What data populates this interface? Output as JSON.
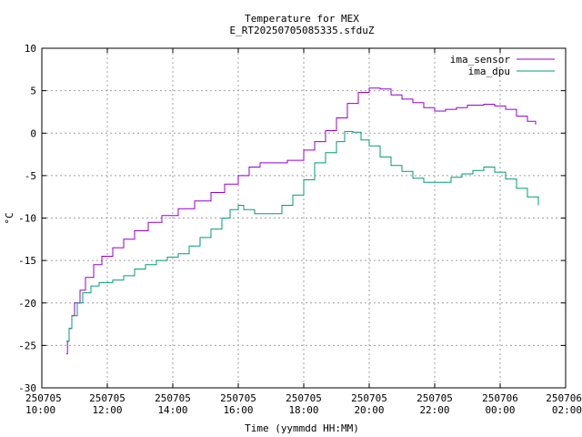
{
  "chart_data": {
    "type": "line",
    "title": "Temperature for MEX",
    "subtitle": "E_RT20250705085335.sfduZ",
    "xlabel": "Time (yymmdd HH:MM)",
    "ylabel": "°C",
    "xlim": [
      "2025-07-05T10:00",
      "2025-07-06T02:00"
    ],
    "ylim": [
      -30,
      10
    ],
    "grid": true,
    "legend_position": "top-right",
    "x_ticks": [
      {
        "date": "250705",
        "time": "10:00",
        "t": "2025-07-05T10:00"
      },
      {
        "date": "250705",
        "time": "12:00",
        "t": "2025-07-05T12:00"
      },
      {
        "date": "250705",
        "time": "14:00",
        "t": "2025-07-05T14:00"
      },
      {
        "date": "250705",
        "time": "16:00",
        "t": "2025-07-05T16:00"
      },
      {
        "date": "250705",
        "time": "18:00",
        "t": "2025-07-05T18:00"
      },
      {
        "date": "250705",
        "time": "20:00",
        "t": "2025-07-05T20:00"
      },
      {
        "date": "250705",
        "time": "22:00",
        "t": "2025-07-05T22:00"
      },
      {
        "date": "250706",
        "time": "00:00",
        "t": "2025-07-06T00:00"
      },
      {
        "date": "250706",
        "time": "02:00",
        "t": "2025-07-06T02:00"
      }
    ],
    "y_ticks": [
      -30,
      -25,
      -20,
      -15,
      -10,
      -5,
      0,
      5,
      10
    ],
    "series": [
      {
        "name": "ima_sensor",
        "color": "#9400d3",
        "points": [
          [
            "2025-07-05T10:45",
            -26.0
          ],
          [
            "2025-07-05T10:47",
            -24.5
          ],
          [
            "2025-07-05T10:50",
            -23.0
          ],
          [
            "2025-07-05T10:55",
            -21.5
          ],
          [
            "2025-07-05T11:00",
            -20.0
          ],
          [
            "2025-07-05T11:10",
            -18.5
          ],
          [
            "2025-07-05T11:20",
            -17.0
          ],
          [
            "2025-07-05T11:35",
            -15.5
          ],
          [
            "2025-07-05T11:50",
            -14.5
          ],
          [
            "2025-07-05T12:10",
            -13.5
          ],
          [
            "2025-07-05T12:30",
            -12.5
          ],
          [
            "2025-07-05T12:50",
            -11.5
          ],
          [
            "2025-07-05T13:15",
            -10.5
          ],
          [
            "2025-07-05T13:40",
            -9.7
          ],
          [
            "2025-07-05T14:10",
            -8.9
          ],
          [
            "2025-07-05T14:40",
            -8.0
          ],
          [
            "2025-07-05T15:10",
            -7.0
          ],
          [
            "2025-07-05T15:35",
            -6.0
          ],
          [
            "2025-07-05T16:00",
            -5.0
          ],
          [
            "2025-07-05T16:20",
            -4.0
          ],
          [
            "2025-07-05T16:40",
            -3.5
          ],
          [
            "2025-07-05T17:00",
            -3.5
          ],
          [
            "2025-07-05T17:30",
            -3.2
          ],
          [
            "2025-07-05T18:00",
            -2.0
          ],
          [
            "2025-07-05T18:20",
            -1.0
          ],
          [
            "2025-07-05T18:40",
            0.3
          ],
          [
            "2025-07-05T19:00",
            1.8
          ],
          [
            "2025-07-05T19:20",
            3.5
          ],
          [
            "2025-07-05T19:40",
            4.8
          ],
          [
            "2025-07-05T20:00",
            5.3
          ],
          [
            "2025-07-05T20:20",
            5.2
          ],
          [
            "2025-07-05T20:40",
            4.5
          ],
          [
            "2025-07-05T21:00",
            4.0
          ],
          [
            "2025-07-05T21:20",
            3.6
          ],
          [
            "2025-07-05T21:40",
            3.0
          ],
          [
            "2025-07-05T22:00",
            2.6
          ],
          [
            "2025-07-05T22:20",
            2.8
          ],
          [
            "2025-07-05T22:40",
            3.0
          ],
          [
            "2025-07-05T23:00",
            3.3
          ],
          [
            "2025-07-05T23:30",
            3.4
          ],
          [
            "2025-07-05T23:50",
            3.2
          ],
          [
            "2025-07-06T00:10",
            2.8
          ],
          [
            "2025-07-06T00:30",
            2.0
          ],
          [
            "2025-07-06T00:50",
            1.4
          ],
          [
            "2025-07-06T01:05",
            1.0
          ]
        ]
      },
      {
        "name": "ima_dpu",
        "color": "#009e73",
        "points": [
          [
            "2025-07-05T10:45",
            -24.5
          ],
          [
            "2025-07-05T10:50",
            -23.0
          ],
          [
            "2025-07-05T10:55",
            -21.5
          ],
          [
            "2025-07-05T11:05",
            -20.0
          ],
          [
            "2025-07-05T11:15",
            -18.8
          ],
          [
            "2025-07-05T11:30",
            -18.0
          ],
          [
            "2025-07-05T11:45",
            -17.6
          ],
          [
            "2025-07-05T12:10",
            -17.3
          ],
          [
            "2025-07-05T12:30",
            -16.8
          ],
          [
            "2025-07-05T12:50",
            -16.0
          ],
          [
            "2025-07-05T13:10",
            -15.5
          ],
          [
            "2025-07-05T13:30",
            -15.0
          ],
          [
            "2025-07-05T13:50",
            -14.6
          ],
          [
            "2025-07-05T14:10",
            -14.2
          ],
          [
            "2025-07-05T14:30",
            -13.3
          ],
          [
            "2025-07-05T14:50",
            -12.3
          ],
          [
            "2025-07-05T15:10",
            -11.3
          ],
          [
            "2025-07-05T15:30",
            -10.0
          ],
          [
            "2025-07-05T15:45",
            -9.0
          ],
          [
            "2025-07-05T16:00",
            -8.5
          ],
          [
            "2025-07-05T16:10",
            -9.0
          ],
          [
            "2025-07-05T16:30",
            -9.5
          ],
          [
            "2025-07-05T17:00",
            -9.5
          ],
          [
            "2025-07-05T17:20",
            -8.5
          ],
          [
            "2025-07-05T17:40",
            -7.3
          ],
          [
            "2025-07-05T18:00",
            -5.5
          ],
          [
            "2025-07-05T18:20",
            -3.5
          ],
          [
            "2025-07-05T18:40",
            -2.3
          ],
          [
            "2025-07-05T19:00",
            -1.0
          ],
          [
            "2025-07-05T19:15",
            0.2
          ],
          [
            "2025-07-05T19:30",
            0.1
          ],
          [
            "2025-07-05T19:45",
            -0.8
          ],
          [
            "2025-07-05T20:00",
            -1.5
          ],
          [
            "2025-07-05T20:20",
            -2.8
          ],
          [
            "2025-07-05T20:40",
            -3.8
          ],
          [
            "2025-07-05T21:00",
            -4.5
          ],
          [
            "2025-07-05T21:20",
            -5.3
          ],
          [
            "2025-07-05T21:40",
            -5.8
          ],
          [
            "2025-07-05T22:10",
            -5.8
          ],
          [
            "2025-07-05T22:30",
            -5.2
          ],
          [
            "2025-07-05T22:50",
            -4.8
          ],
          [
            "2025-07-05T23:10",
            -4.4
          ],
          [
            "2025-07-05T23:30",
            -4.0
          ],
          [
            "2025-07-05T23:50",
            -4.6
          ],
          [
            "2025-07-06T00:10",
            -5.4
          ],
          [
            "2025-07-06T00:30",
            -6.5
          ],
          [
            "2025-07-06T00:50",
            -7.5
          ],
          [
            "2025-07-06T01:10",
            -8.5
          ]
        ]
      }
    ]
  }
}
